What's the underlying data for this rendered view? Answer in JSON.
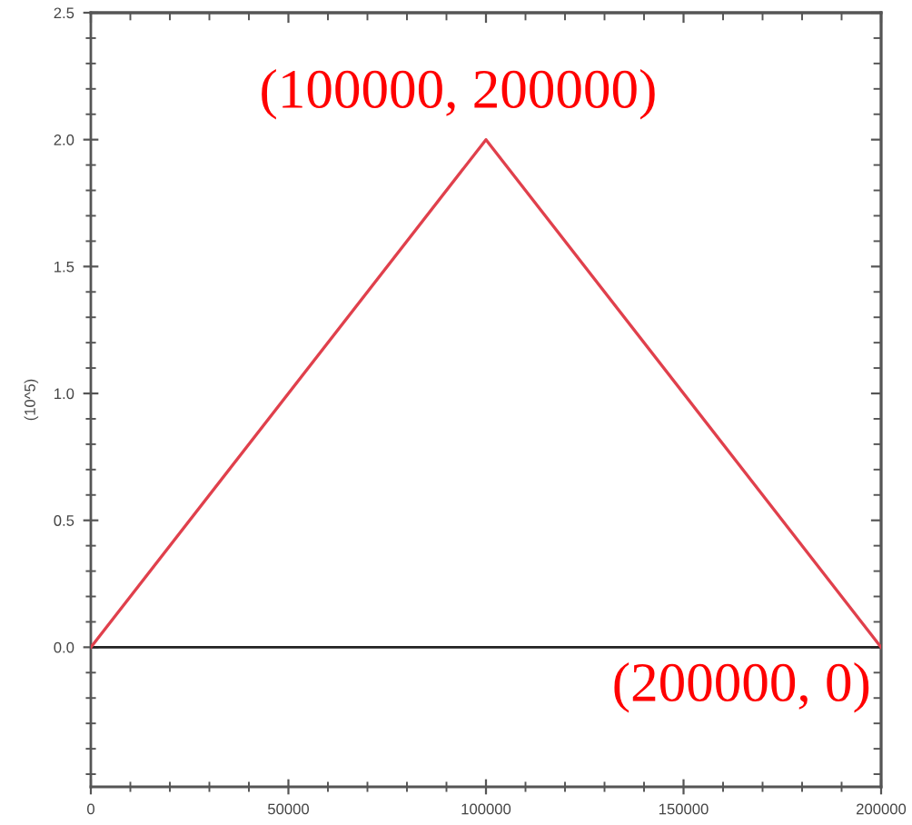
{
  "chart_data": {
    "type": "line",
    "ylabel": "(10^5)",
    "x": [
      0,
      100000,
      200000
    ],
    "series": [
      {
        "color": "#e0404c",
        "values": [
          0,
          2.0,
          0
        ]
      }
    ],
    "xlim": [
      0,
      200000
    ],
    "xticks": [
      0,
      50000,
      100000,
      150000,
      200000
    ],
    "ylim": [
      -0.55,
      2.5
    ],
    "yticks": [
      {
        "value": 0,
        "label": "0.0"
      },
      {
        "value": 0.5,
        "label": "0.5"
      },
      {
        "value": 1,
        "label": "1.0"
      },
      {
        "value": 1.5,
        "label": "1.5"
      },
      {
        "value": 2,
        "label": "2.0"
      },
      {
        "value": 2.5,
        "label": "2.5"
      }
    ],
    "ref_lines": [
      {
        "axis": "y",
        "value": 0,
        "color": "#222222",
        "line_style": "solid"
      }
    ],
    "annotations": [
      {
        "text": "(100000, 200000)",
        "x": 100000,
        "y": 2.0
      },
      {
        "text": "(200000, 0)",
        "x": 200000,
        "y": 0
      }
    ],
    "grid": false,
    "legend": false,
    "marker": "none",
    "line_style": "solid"
  }
}
